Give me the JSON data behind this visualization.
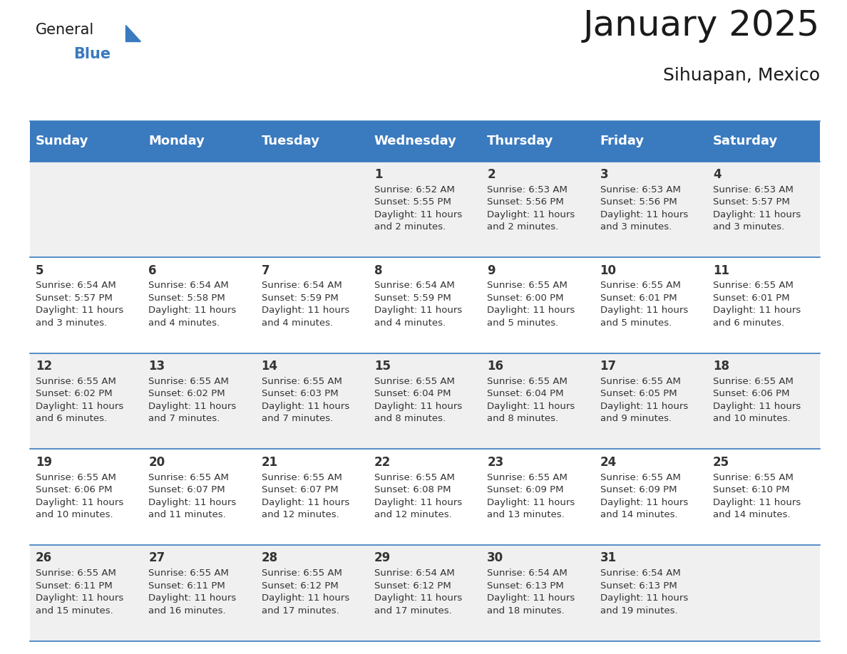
{
  "title": "January 2025",
  "subtitle": "Sihuapan, Mexico",
  "days_of_week": [
    "Sunday",
    "Monday",
    "Tuesday",
    "Wednesday",
    "Thursday",
    "Friday",
    "Saturday"
  ],
  "header_bg": "#3a7abf",
  "header_text": "#ffffff",
  "row_bg_odd": "#f0f0f0",
  "row_bg_even": "#ffffff",
  "cell_text": "#333333",
  "grid_line": "#3a7abf",
  "calendar_data": [
    [
      {
        "day": "",
        "sunrise": "",
        "sunset": "",
        "daylight": ""
      },
      {
        "day": "",
        "sunrise": "",
        "sunset": "",
        "daylight": ""
      },
      {
        "day": "",
        "sunrise": "",
        "sunset": "",
        "daylight": ""
      },
      {
        "day": "1",
        "sunrise": "6:52 AM",
        "sunset": "5:55 PM",
        "daylight": "11 hours\nand 2 minutes."
      },
      {
        "day": "2",
        "sunrise": "6:53 AM",
        "sunset": "5:56 PM",
        "daylight": "11 hours\nand 2 minutes."
      },
      {
        "day": "3",
        "sunrise": "6:53 AM",
        "sunset": "5:56 PM",
        "daylight": "11 hours\nand 3 minutes."
      },
      {
        "day": "4",
        "sunrise": "6:53 AM",
        "sunset": "5:57 PM",
        "daylight": "11 hours\nand 3 minutes."
      }
    ],
    [
      {
        "day": "5",
        "sunrise": "6:54 AM",
        "sunset": "5:57 PM",
        "daylight": "11 hours\nand 3 minutes."
      },
      {
        "day": "6",
        "sunrise": "6:54 AM",
        "sunset": "5:58 PM",
        "daylight": "11 hours\nand 4 minutes."
      },
      {
        "day": "7",
        "sunrise": "6:54 AM",
        "sunset": "5:59 PM",
        "daylight": "11 hours\nand 4 minutes."
      },
      {
        "day": "8",
        "sunrise": "6:54 AM",
        "sunset": "5:59 PM",
        "daylight": "11 hours\nand 4 minutes."
      },
      {
        "day": "9",
        "sunrise": "6:55 AM",
        "sunset": "6:00 PM",
        "daylight": "11 hours\nand 5 minutes."
      },
      {
        "day": "10",
        "sunrise": "6:55 AM",
        "sunset": "6:01 PM",
        "daylight": "11 hours\nand 5 minutes."
      },
      {
        "day": "11",
        "sunrise": "6:55 AM",
        "sunset": "6:01 PM",
        "daylight": "11 hours\nand 6 minutes."
      }
    ],
    [
      {
        "day": "12",
        "sunrise": "6:55 AM",
        "sunset": "6:02 PM",
        "daylight": "11 hours\nand 6 minutes."
      },
      {
        "day": "13",
        "sunrise": "6:55 AM",
        "sunset": "6:02 PM",
        "daylight": "11 hours\nand 7 minutes."
      },
      {
        "day": "14",
        "sunrise": "6:55 AM",
        "sunset": "6:03 PM",
        "daylight": "11 hours\nand 7 minutes."
      },
      {
        "day": "15",
        "sunrise": "6:55 AM",
        "sunset": "6:04 PM",
        "daylight": "11 hours\nand 8 minutes."
      },
      {
        "day": "16",
        "sunrise": "6:55 AM",
        "sunset": "6:04 PM",
        "daylight": "11 hours\nand 8 minutes."
      },
      {
        "day": "17",
        "sunrise": "6:55 AM",
        "sunset": "6:05 PM",
        "daylight": "11 hours\nand 9 minutes."
      },
      {
        "day": "18",
        "sunrise": "6:55 AM",
        "sunset": "6:06 PM",
        "daylight": "11 hours\nand 10 minutes."
      }
    ],
    [
      {
        "day": "19",
        "sunrise": "6:55 AM",
        "sunset": "6:06 PM",
        "daylight": "11 hours\nand 10 minutes."
      },
      {
        "day": "20",
        "sunrise": "6:55 AM",
        "sunset": "6:07 PM",
        "daylight": "11 hours\nand 11 minutes."
      },
      {
        "day": "21",
        "sunrise": "6:55 AM",
        "sunset": "6:07 PM",
        "daylight": "11 hours\nand 12 minutes."
      },
      {
        "day": "22",
        "sunrise": "6:55 AM",
        "sunset": "6:08 PM",
        "daylight": "11 hours\nand 12 minutes."
      },
      {
        "day": "23",
        "sunrise": "6:55 AM",
        "sunset": "6:09 PM",
        "daylight": "11 hours\nand 13 minutes."
      },
      {
        "day": "24",
        "sunrise": "6:55 AM",
        "sunset": "6:09 PM",
        "daylight": "11 hours\nand 14 minutes."
      },
      {
        "day": "25",
        "sunrise": "6:55 AM",
        "sunset": "6:10 PM",
        "daylight": "11 hours\nand 14 minutes."
      }
    ],
    [
      {
        "day": "26",
        "sunrise": "6:55 AM",
        "sunset": "6:11 PM",
        "daylight": "11 hours\nand 15 minutes."
      },
      {
        "day": "27",
        "sunrise": "6:55 AM",
        "sunset": "6:11 PM",
        "daylight": "11 hours\nand 16 minutes."
      },
      {
        "day": "28",
        "sunrise": "6:55 AM",
        "sunset": "6:12 PM",
        "daylight": "11 hours\nand 17 minutes."
      },
      {
        "day": "29",
        "sunrise": "6:54 AM",
        "sunset": "6:12 PM",
        "daylight": "11 hours\nand 17 minutes."
      },
      {
        "day": "30",
        "sunrise": "6:54 AM",
        "sunset": "6:13 PM",
        "daylight": "11 hours\nand 18 minutes."
      },
      {
        "day": "31",
        "sunrise": "6:54 AM",
        "sunset": "6:13 PM",
        "daylight": "11 hours\nand 19 minutes."
      },
      {
        "day": "",
        "sunrise": "",
        "sunset": "",
        "daylight": ""
      }
    ]
  ],
  "logo_general_color": "#1a1a1a",
  "logo_blue_color": "#3a7abf",
  "title_fontsize": 36,
  "subtitle_fontsize": 18,
  "header_fontsize": 13,
  "day_num_fontsize": 12,
  "cell_info_fontsize": 9.5
}
